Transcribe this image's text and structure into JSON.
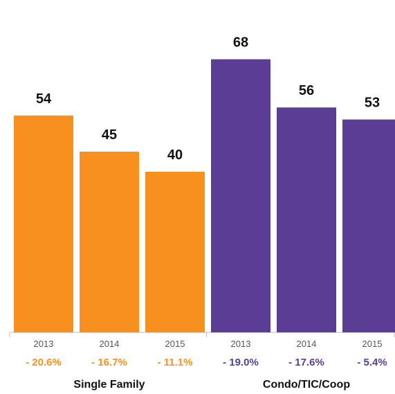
{
  "chart_data": {
    "type": "bar",
    "title": "",
    "xlabel": "",
    "ylabel": "",
    "ylim": [
      0,
      70
    ],
    "grid": false,
    "legend": "none",
    "groups": [
      {
        "name": "Single Family",
        "color": "#F7901E",
        "bars": [
          {
            "year": "2013",
            "value": 54,
            "change": "- 20.6%"
          },
          {
            "year": "2014",
            "value": 45,
            "change": "- 16.7%"
          },
          {
            "year": "2015",
            "value": 40,
            "change": "- 11.1%"
          }
        ]
      },
      {
        "name": "Condo/TIC/Coop",
        "color": "#5A3E96",
        "bars": [
          {
            "year": "2013",
            "value": 68,
            "change": "- 19.0%"
          },
          {
            "year": "2014",
            "value": 56,
            "change": "- 17.6%"
          },
          {
            "year": "2015",
            "value": 53,
            "change": "- 5.4%"
          }
        ]
      }
    ]
  }
}
